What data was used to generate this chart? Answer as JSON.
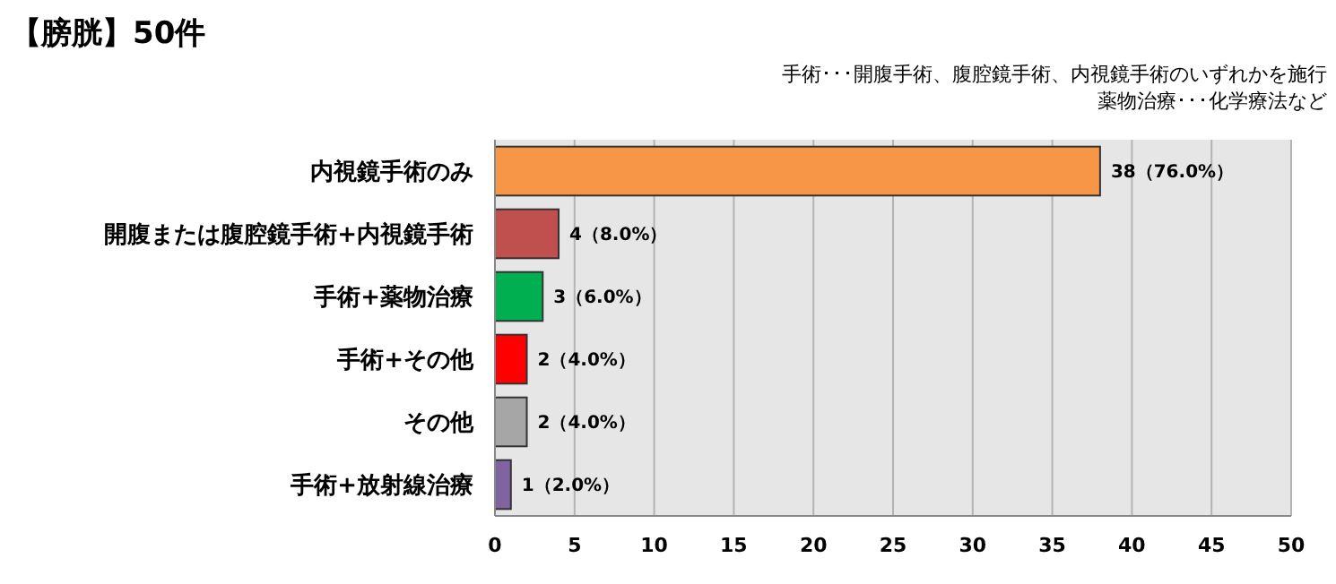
{
  "chart_data": {
    "type": "bar",
    "orientation": "horizontal",
    "title": "【膀胱】50件",
    "annotations": [
      "手術･･･開腹手術、腹腔鏡手術、内視鏡手術のいずれかを施行",
      "薬物治療･･･化学療法など"
    ],
    "categories": [
      "内視鏡手術のみ",
      "開腹または腹腔鏡手術+内視鏡手術",
      "手術+薬物治療",
      "手術+その他",
      "その他",
      "手術+放射線治療"
    ],
    "values": [
      38,
      4,
      3,
      2,
      2,
      1
    ],
    "colors": [
      "#f79646",
      "#c0504d",
      "#00b050",
      "#ff0000",
      "#a6a6a6",
      "#8064a2"
    ],
    "value_labels": [
      "38（76.0%）",
      "4（8.0%）",
      "3（6.0%）",
      "2（4.0%）",
      "2（4.0%）",
      "1（2.0%）"
    ],
    "xlim": [
      0,
      50
    ],
    "xticks": [
      0,
      5,
      10,
      15,
      20,
      25,
      30,
      35,
      40,
      45,
      50
    ],
    "grid": "x"
  }
}
